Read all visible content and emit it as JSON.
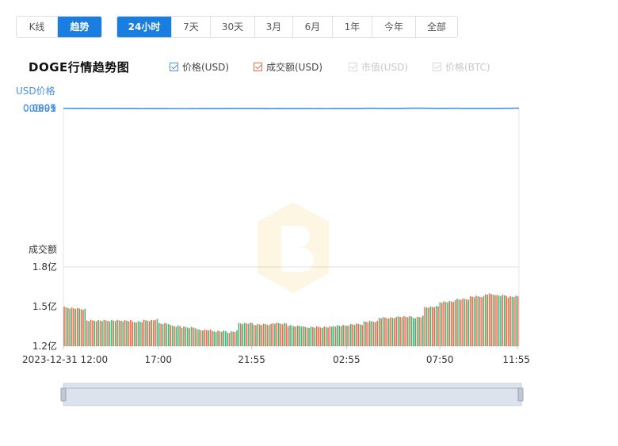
{
  "view_tabs": [
    {
      "label": "K线",
      "active": false
    },
    {
      "label": "趋势",
      "active": true
    }
  ],
  "range_tabs": [
    {
      "label": "24小时",
      "active": true
    },
    {
      "label": "7天",
      "active": false
    },
    {
      "label": "30天",
      "active": false
    },
    {
      "label": "3月",
      "active": false
    },
    {
      "label": "6月",
      "active": false
    },
    {
      "label": "1年",
      "active": false
    },
    {
      "label": "今年",
      "active": false
    },
    {
      "label": "全部",
      "active": false
    }
  ],
  "chart_title": "DOGE行情趋势图",
  "legend": [
    {
      "label": "价格(USD)",
      "checked": true,
      "color": "#4a90e2"
    },
    {
      "label": "成交额(USD)",
      "checked": true,
      "color": "#f06a4a"
    },
    {
      "label": "市值(USD)",
      "checked": false,
      "color": "#cccccc"
    },
    {
      "label": "价格(BTC)",
      "checked": false,
      "color": "#cccccc"
    }
  ],
  "colors": {
    "accent": "#1a7de0",
    "price_line": "#4a90e2",
    "volume_up": "#f06a4a",
    "volume_down": "#3cb87a",
    "axis_label_blue": "#4a90e2"
  },
  "chart_data": {
    "type": "line",
    "price_axis_label": "USD价格",
    "volume_axis_label": "成交额",
    "price_ylim": [
      0.8935,
      0.091
    ],
    "price_ticks": [
      "0.091",
      "0.0905",
      "0.09",
      "0.0895"
    ],
    "volume_ylim": [
      1.2,
      1.8
    ],
    "volume_ticks": [
      "1.8亿",
      "1.5亿",
      "1.2亿"
    ],
    "volume_tick_values": [
      1.8,
      1.5,
      1.2
    ],
    "x_ticks": [
      "2023-12-31 12:00",
      "17:00",
      "21:55",
      "02:55",
      "07:50",
      "11:55"
    ],
    "x_tick_positions": [
      0,
      5,
      9.9167,
      14.9167,
      19.8333,
      23.9167
    ],
    "x_range": [
      0,
      24
    ],
    "price_series": [
      [
        0.0,
        0.08985
      ],
      [
        0.2,
        0.08975
      ],
      [
        0.4,
        0.09
      ],
      [
        0.6,
        0.09005
      ],
      [
        0.8,
        0.0901
      ],
      [
        1.0,
        0.08995
      ],
      [
        1.2,
        0.09
      ],
      [
        1.4,
        0.09015
      ],
      [
        1.6,
        0.0902
      ],
      [
        1.8,
        0.0903
      ],
      [
        2.0,
        0.09025
      ],
      [
        2.2,
        0.0904
      ],
      [
        2.4,
        0.09035
      ],
      [
        2.6,
        0.0902
      ],
      [
        2.8,
        0.09025
      ],
      [
        3.0,
        0.0904
      ],
      [
        3.2,
        0.09035
      ],
      [
        3.4,
        0.0903
      ],
      [
        3.6,
        0.09035
      ],
      [
        3.8,
        0.0905
      ],
      [
        4.0,
        0.09065
      ],
      [
        4.2,
        0.09085
      ],
      [
        4.4,
        0.0907
      ],
      [
        4.6,
        0.0906
      ],
      [
        4.8,
        0.09055
      ],
      [
        5.0,
        0.0906
      ],
      [
        5.2,
        0.0905
      ],
      [
        5.4,
        0.0907
      ],
      [
        5.6,
        0.09085
      ],
      [
        5.8,
        0.0909
      ],
      [
        6.0,
        0.09095
      ],
      [
        6.2,
        0.0909
      ],
      [
        6.4,
        0.09085
      ],
      [
        6.6,
        0.0909
      ],
      [
        6.8,
        0.09075
      ],
      [
        7.0,
        0.0908
      ],
      [
        7.2,
        0.0907
      ],
      [
        7.4,
        0.09075
      ],
      [
        7.6,
        0.0906
      ],
      [
        7.8,
        0.09055
      ],
      [
        8.0,
        0.09065
      ],
      [
        8.2,
        0.09075
      ],
      [
        8.4,
        0.0907
      ],
      [
        8.6,
        0.09078
      ],
      [
        8.8,
        0.09025
      ],
      [
        9.0,
        0.0903
      ],
      [
        9.2,
        0.09025
      ],
      [
        9.4,
        0.09028
      ],
      [
        9.6,
        0.0902
      ],
      [
        9.8,
        0.0903
      ],
      [
        10.0,
        0.09025
      ],
      [
        10.2,
        0.0903
      ],
      [
        10.4,
        0.0904
      ],
      [
        10.6,
        0.09035
      ],
      [
        10.8,
        0.09045
      ],
      [
        11.0,
        0.0904
      ],
      [
        11.2,
        0.09048
      ],
      [
        11.4,
        0.0903
      ],
      [
        11.6,
        0.0904
      ],
      [
        11.8,
        0.09055
      ],
      [
        12.0,
        0.0906
      ],
      [
        12.2,
        0.09065
      ],
      [
        12.4,
        0.0907
      ],
      [
        12.6,
        0.09075
      ],
      [
        12.8,
        0.0907
      ],
      [
        13.0,
        0.09065
      ],
      [
        13.2,
        0.0908
      ],
      [
        13.4,
        0.0906
      ],
      [
        13.6,
        0.09075
      ],
      [
        13.8,
        0.0908
      ],
      [
        14.0,
        0.09085
      ],
      [
        14.2,
        0.0907
      ],
      [
        14.4,
        0.0906
      ],
      [
        14.6,
        0.0907
      ],
      [
        14.8,
        0.09065
      ],
      [
        15.0,
        0.0906
      ],
      [
        15.2,
        0.09045
      ],
      [
        15.4,
        0.0904
      ],
      [
        15.6,
        0.0903
      ],
      [
        15.8,
        0.0902
      ],
      [
        16.0,
        0.0899
      ],
      [
        16.2,
        0.08975
      ],
      [
        16.4,
        0.08995
      ],
      [
        16.6,
        0.09025
      ],
      [
        16.8,
        0.09015
      ],
      [
        17.0,
        0.0901
      ],
      [
        17.2,
        0.09015
      ],
      [
        17.4,
        0.0902
      ],
      [
        17.6,
        0.0903
      ],
      [
        17.8,
        0.09035
      ],
      [
        18.0,
        0.0899
      ],
      [
        18.2,
        0.0896
      ],
      [
        18.4,
        0.0894
      ],
      [
        18.6,
        0.08945
      ],
      [
        18.8,
        0.0895
      ],
      [
        19.0,
        0.08945
      ],
      [
        19.2,
        0.0898
      ],
      [
        19.4,
        0.08995
      ],
      [
        19.6,
        0.09
      ],
      [
        19.8,
        0.09005
      ],
      [
        20.0,
        0.08995
      ],
      [
        20.2,
        0.09
      ],
      [
        20.4,
        0.0899
      ],
      [
        20.6,
        0.08985
      ],
      [
        20.8,
        0.0899
      ],
      [
        21.0,
        0.09
      ],
      [
        21.2,
        0.0901
      ],
      [
        21.4,
        0.0902
      ],
      [
        21.6,
        0.09025
      ],
      [
        21.8,
        0.0903
      ],
      [
        22.0,
        0.09025
      ],
      [
        22.2,
        0.09015
      ],
      [
        22.4,
        0.0902
      ],
      [
        22.6,
        0.09015
      ],
      [
        22.8,
        0.0901
      ],
      [
        23.0,
        0.09
      ],
      [
        23.2,
        0.0899
      ],
      [
        23.4,
        0.0897
      ],
      [
        23.6,
        0.0896
      ],
      [
        23.8,
        0.0894
      ],
      [
        24.0,
        0.08945
      ]
    ],
    "volume_series": [
      [
        0.0,
        1.5,
        "up"
      ],
      [
        1.2,
        1.4,
        "up"
      ],
      [
        2.0,
        1.4,
        "down"
      ],
      [
        3.0,
        1.4,
        "up"
      ],
      [
        3.6,
        1.39,
        "down"
      ],
      [
        4.2,
        1.4,
        "up"
      ],
      [
        4.8,
        1.41,
        "down"
      ],
      [
        5.0,
        1.38,
        "down"
      ],
      [
        5.6,
        1.36,
        "down"
      ],
      [
        6.2,
        1.35,
        "down"
      ],
      [
        7.0,
        1.33,
        "up"
      ],
      [
        7.8,
        1.32,
        "down"
      ],
      [
        8.6,
        1.31,
        "up"
      ],
      [
        9.2,
        1.38,
        "down"
      ],
      [
        10.0,
        1.37,
        "up"
      ],
      [
        11.0,
        1.38,
        "up"
      ],
      [
        11.8,
        1.36,
        "down"
      ],
      [
        12.6,
        1.35,
        "down"
      ],
      [
        13.4,
        1.35,
        "up"
      ],
      [
        14.2,
        1.36,
        "down"
      ],
      [
        15.0,
        1.37,
        "up"
      ],
      [
        15.8,
        1.39,
        "up"
      ],
      [
        16.6,
        1.42,
        "up"
      ],
      [
        17.6,
        1.43,
        "up"
      ],
      [
        18.4,
        1.42,
        "down"
      ],
      [
        19.0,
        1.5,
        "up"
      ],
      [
        19.8,
        1.54,
        "up"
      ],
      [
        20.6,
        1.56,
        "up"
      ],
      [
        21.4,
        1.58,
        "up"
      ],
      [
        22.2,
        1.6,
        "up"
      ],
      [
        22.8,
        1.59,
        "down"
      ],
      [
        23.4,
        1.58,
        "up"
      ],
      [
        24.0,
        1.6,
        "up"
      ]
    ],
    "grid": true,
    "legend_position": "top"
  }
}
